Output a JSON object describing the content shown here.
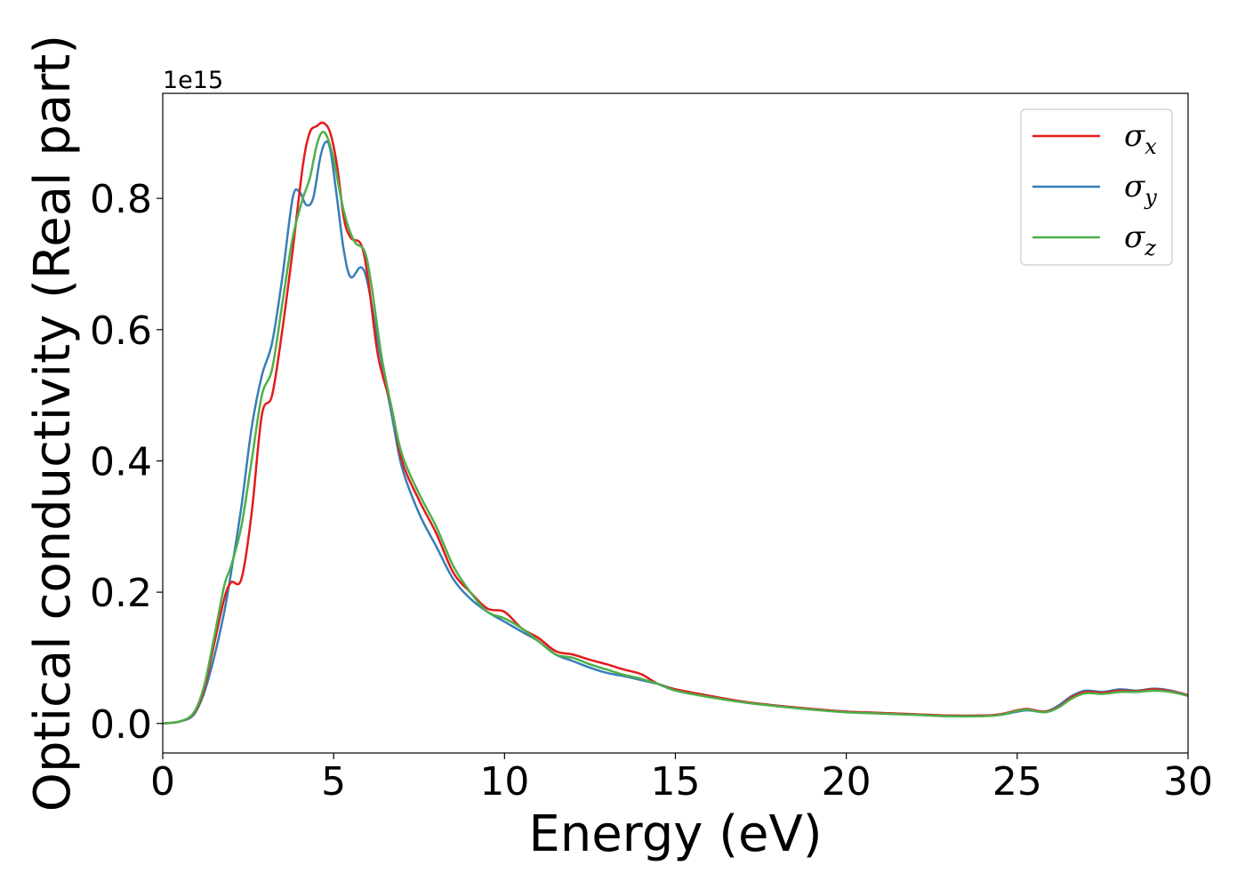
{
  "chart_data": {
    "type": "line",
    "title": "",
    "xlabel": "Energy (eV)",
    "ylabel": "Optical conductivity (Real part)",
    "y_offset_label": "1e15",
    "xlim": [
      0,
      30
    ],
    "ylim": [
      -0.045,
      0.96
    ],
    "xticks": [
      0,
      5,
      10,
      15,
      20,
      25,
      30
    ],
    "xtick_labels": [
      "0",
      "5",
      "10",
      "15",
      "20",
      "25",
      "30"
    ],
    "yticks": [
      0.0,
      0.2,
      0.4,
      0.6,
      0.8
    ],
    "ytick_labels": [
      "0.0",
      "0.2",
      "0.4",
      "0.6",
      "0.8"
    ],
    "grid": false,
    "legend_position": "top-right",
    "series": [
      {
        "name": "σx",
        "symbol": "σ",
        "sub": "x",
        "color": "#e41a1c",
        "points": [
          [
            0,
            0
          ],
          [
            0.5,
            0.003
          ],
          [
            0.9,
            0.015
          ],
          [
            1.2,
            0.05
          ],
          [
            1.5,
            0.12
          ],
          [
            1.8,
            0.19
          ],
          [
            2.0,
            0.215
          ],
          [
            2.3,
            0.22
          ],
          [
            2.6,
            0.32
          ],
          [
            2.9,
            0.47
          ],
          [
            3.2,
            0.5
          ],
          [
            3.5,
            0.6
          ],
          [
            3.8,
            0.72
          ],
          [
            4.1,
            0.85
          ],
          [
            4.3,
            0.9
          ],
          [
            4.5,
            0.91
          ],
          [
            4.7,
            0.915
          ],
          [
            4.9,
            0.9
          ],
          [
            5.1,
            0.85
          ],
          [
            5.3,
            0.77
          ],
          [
            5.5,
            0.74
          ],
          [
            5.8,
            0.73
          ],
          [
            6.0,
            0.68
          ],
          [
            6.3,
            0.56
          ],
          [
            6.7,
            0.48
          ],
          [
            7.0,
            0.4
          ],
          [
            7.5,
            0.34
          ],
          [
            8.0,
            0.29
          ],
          [
            8.5,
            0.23
          ],
          [
            9.0,
            0.2
          ],
          [
            9.5,
            0.175
          ],
          [
            10.0,
            0.17
          ],
          [
            10.5,
            0.145
          ],
          [
            11.0,
            0.13
          ],
          [
            11.5,
            0.11
          ],
          [
            12.0,
            0.105
          ],
          [
            12.5,
            0.097
          ],
          [
            13.0,
            0.09
          ],
          [
            13.5,
            0.082
          ],
          [
            14.0,
            0.075
          ],
          [
            14.5,
            0.06
          ],
          [
            15.0,
            0.052
          ],
          [
            16.0,
            0.042
          ],
          [
            17.0,
            0.033
          ],
          [
            18.0,
            0.027
          ],
          [
            19.0,
            0.022
          ],
          [
            20.0,
            0.018
          ],
          [
            21.0,
            0.016
          ],
          [
            22.0,
            0.014
          ],
          [
            23.0,
            0.012
          ],
          [
            24.0,
            0.012
          ],
          [
            24.5,
            0.014
          ],
          [
            25.0,
            0.02
          ],
          [
            25.3,
            0.022
          ],
          [
            25.8,
            0.018
          ],
          [
            26.2,
            0.025
          ],
          [
            26.6,
            0.04
          ],
          [
            27.0,
            0.048
          ],
          [
            27.5,
            0.047
          ],
          [
            28.0,
            0.05
          ],
          [
            28.5,
            0.049
          ],
          [
            29.0,
            0.052
          ],
          [
            29.5,
            0.049
          ],
          [
            30.0,
            0.043
          ]
        ]
      },
      {
        "name": "σy",
        "symbol": "σ",
        "sub": "y",
        "color": "#377eb8",
        "points": [
          [
            0,
            0
          ],
          [
            0.5,
            0.003
          ],
          [
            0.9,
            0.013
          ],
          [
            1.2,
            0.045
          ],
          [
            1.5,
            0.1
          ],
          [
            1.8,
            0.17
          ],
          [
            2.0,
            0.23
          ],
          [
            2.3,
            0.33
          ],
          [
            2.6,
            0.45
          ],
          [
            2.9,
            0.53
          ],
          [
            3.2,
            0.58
          ],
          [
            3.5,
            0.68
          ],
          [
            3.8,
            0.8
          ],
          [
            4.0,
            0.81
          ],
          [
            4.2,
            0.79
          ],
          [
            4.4,
            0.8
          ],
          [
            4.6,
            0.86
          ],
          [
            4.75,
            0.885
          ],
          [
            4.9,
            0.875
          ],
          [
            5.1,
            0.8
          ],
          [
            5.3,
            0.72
          ],
          [
            5.5,
            0.68
          ],
          [
            5.8,
            0.695
          ],
          [
            6.0,
            0.67
          ],
          [
            6.3,
            0.58
          ],
          [
            6.7,
            0.47
          ],
          [
            7.0,
            0.39
          ],
          [
            7.5,
            0.32
          ],
          [
            8.0,
            0.27
          ],
          [
            8.5,
            0.22
          ],
          [
            9.0,
            0.19
          ],
          [
            9.5,
            0.17
          ],
          [
            10.0,
            0.155
          ],
          [
            10.5,
            0.14
          ],
          [
            11.0,
            0.125
          ],
          [
            11.5,
            0.105
          ],
          [
            12.0,
            0.095
          ],
          [
            12.5,
            0.085
          ],
          [
            13.0,
            0.077
          ],
          [
            13.5,
            0.072
          ],
          [
            14.0,
            0.066
          ],
          [
            14.5,
            0.06
          ],
          [
            15.0,
            0.052
          ],
          [
            16.0,
            0.042
          ],
          [
            17.0,
            0.033
          ],
          [
            18.0,
            0.027
          ],
          [
            19.0,
            0.022
          ],
          [
            20.0,
            0.018
          ],
          [
            21.0,
            0.016
          ],
          [
            22.0,
            0.014
          ],
          [
            23.0,
            0.012
          ],
          [
            24.0,
            0.012
          ],
          [
            24.5,
            0.013
          ],
          [
            25.0,
            0.018
          ],
          [
            25.3,
            0.02
          ],
          [
            25.8,
            0.018
          ],
          [
            26.2,
            0.027
          ],
          [
            26.6,
            0.042
          ],
          [
            27.0,
            0.05
          ],
          [
            27.5,
            0.048
          ],
          [
            28.0,
            0.052
          ],
          [
            28.5,
            0.05
          ],
          [
            29.0,
            0.053
          ],
          [
            29.5,
            0.05
          ],
          [
            30.0,
            0.043
          ]
        ]
      },
      {
        "name": "σz",
        "symbol": "σ",
        "sub": "z",
        "color": "#4daf4a",
        "points": [
          [
            0,
            0
          ],
          [
            0.5,
            0.003
          ],
          [
            0.9,
            0.016
          ],
          [
            1.2,
            0.055
          ],
          [
            1.5,
            0.13
          ],
          [
            1.8,
            0.21
          ],
          [
            2.0,
            0.24
          ],
          [
            2.3,
            0.3
          ],
          [
            2.6,
            0.4
          ],
          [
            2.9,
            0.5
          ],
          [
            3.2,
            0.54
          ],
          [
            3.5,
            0.64
          ],
          [
            3.8,
            0.74
          ],
          [
            4.1,
            0.8
          ],
          [
            4.3,
            0.83
          ],
          [
            4.5,
            0.88
          ],
          [
            4.65,
            0.9
          ],
          [
            4.8,
            0.895
          ],
          [
            5.0,
            0.86
          ],
          [
            5.3,
            0.78
          ],
          [
            5.6,
            0.735
          ],
          [
            5.9,
            0.72
          ],
          [
            6.1,
            0.67
          ],
          [
            6.4,
            0.56
          ],
          [
            6.7,
            0.48
          ],
          [
            7.0,
            0.41
          ],
          [
            7.5,
            0.35
          ],
          [
            8.0,
            0.3
          ],
          [
            8.5,
            0.24
          ],
          [
            9.0,
            0.2
          ],
          [
            9.5,
            0.17
          ],
          [
            10.0,
            0.16
          ],
          [
            10.5,
            0.145
          ],
          [
            11.0,
            0.125
          ],
          [
            11.5,
            0.105
          ],
          [
            12.0,
            0.1
          ],
          [
            12.5,
            0.09
          ],
          [
            13.0,
            0.082
          ],
          [
            13.5,
            0.074
          ],
          [
            14.0,
            0.068
          ],
          [
            14.5,
            0.06
          ],
          [
            15.0,
            0.05
          ],
          [
            16.0,
            0.04
          ],
          [
            17.0,
            0.032
          ],
          [
            18.0,
            0.026
          ],
          [
            19.0,
            0.021
          ],
          [
            20.0,
            0.017
          ],
          [
            21.0,
            0.015
          ],
          [
            22.0,
            0.013
          ],
          [
            23.0,
            0.011
          ],
          [
            24.0,
            0.011
          ],
          [
            24.5,
            0.013
          ],
          [
            25.0,
            0.019
          ],
          [
            25.3,
            0.021
          ],
          [
            25.8,
            0.017
          ],
          [
            26.2,
            0.024
          ],
          [
            26.6,
            0.038
          ],
          [
            27.0,
            0.046
          ],
          [
            27.5,
            0.045
          ],
          [
            28.0,
            0.048
          ],
          [
            28.5,
            0.048
          ],
          [
            29.0,
            0.05
          ],
          [
            29.5,
            0.048
          ],
          [
            30.0,
            0.042
          ]
        ]
      }
    ]
  }
}
